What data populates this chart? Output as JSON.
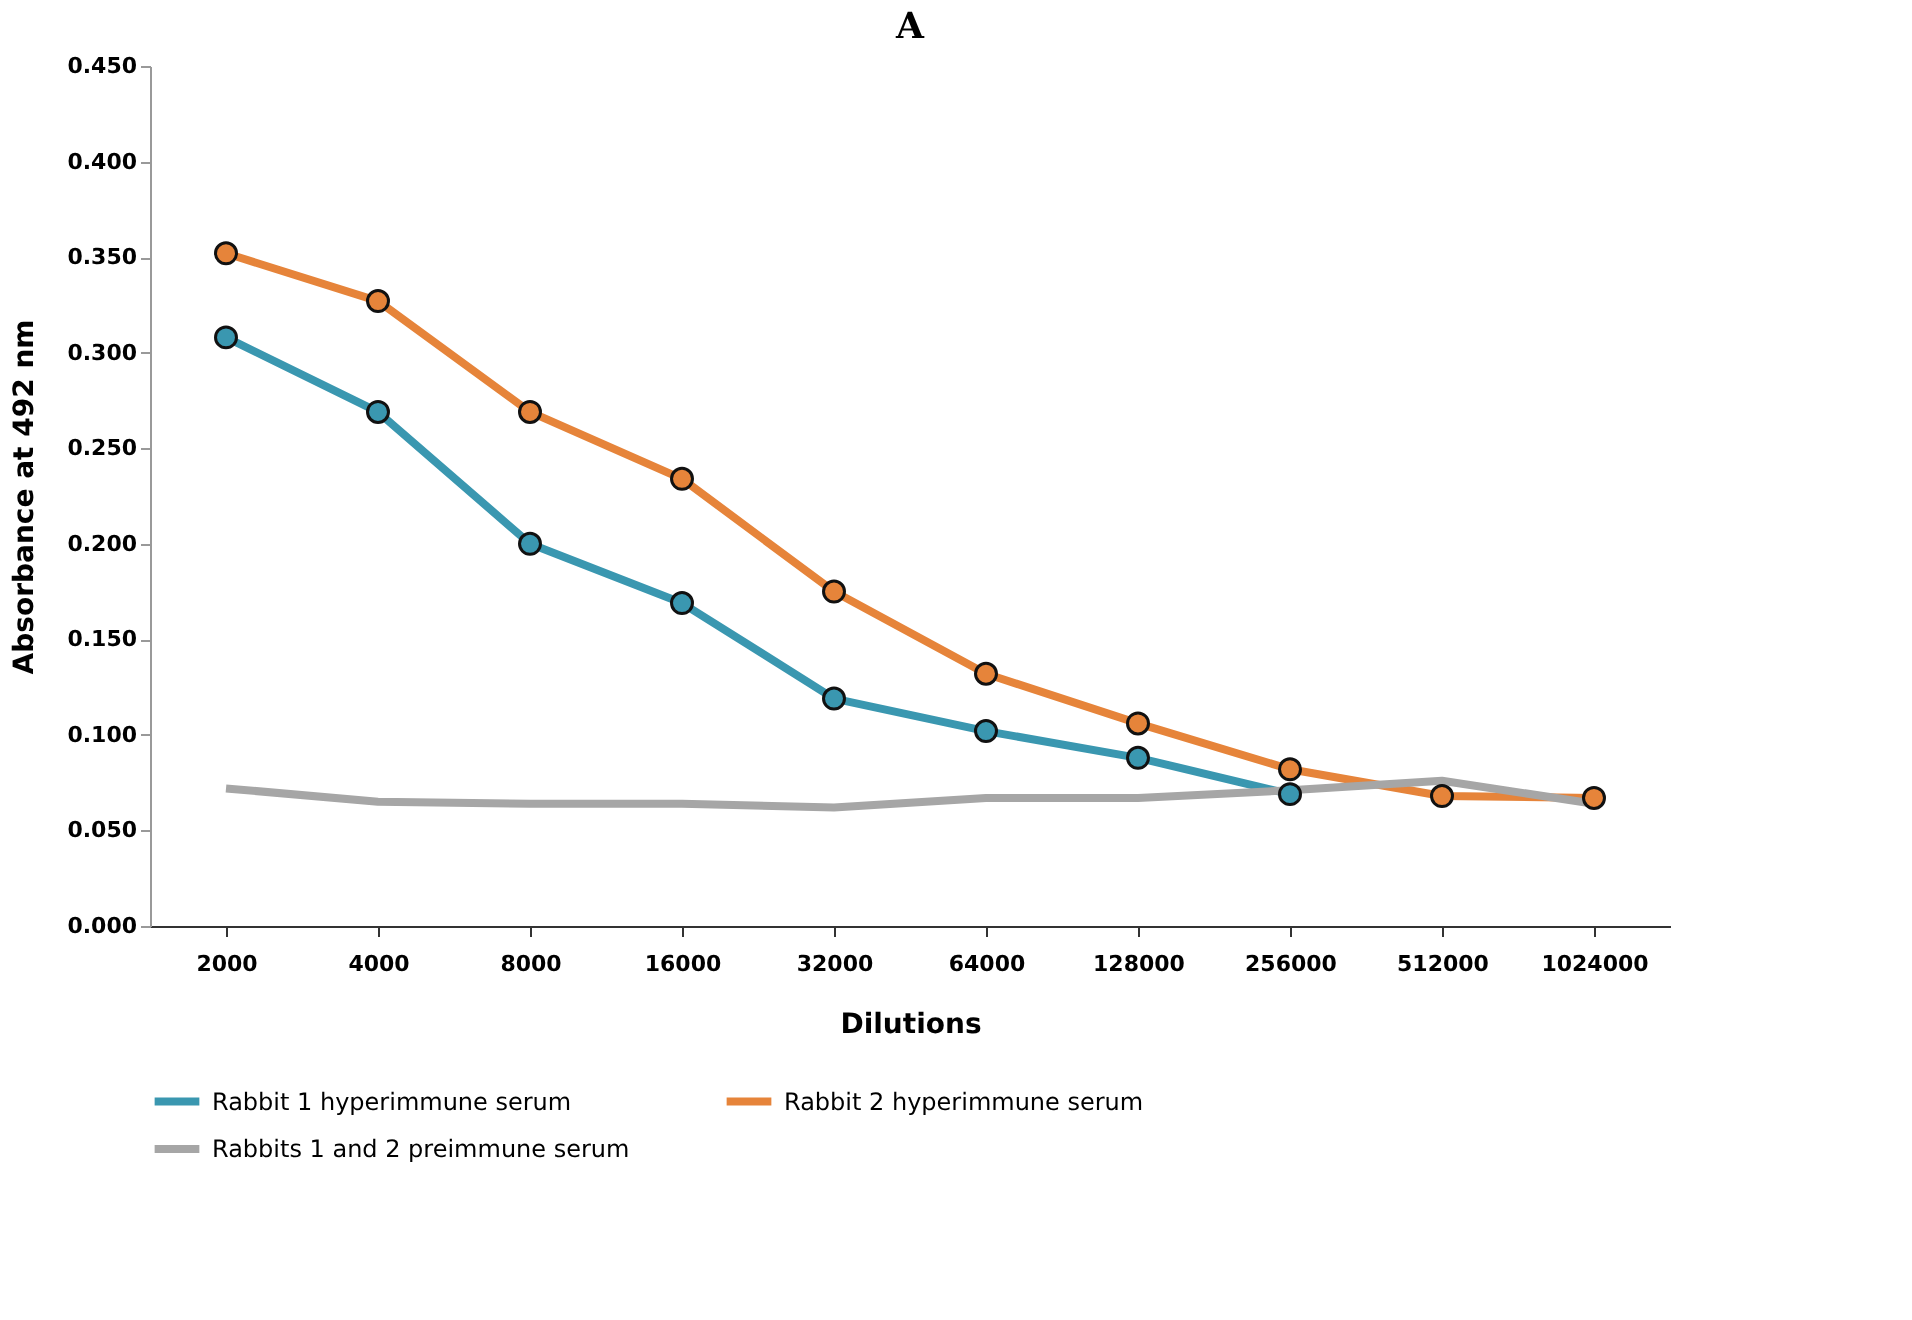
{
  "chart_data": {
    "type": "line",
    "title": "A",
    "xlabel": "Dilutions",
    "ylabel": "Absorbance at 492 nm",
    "categories": [
      "2000",
      "4000",
      "8000",
      "16000",
      "32000",
      "64000",
      "128000",
      "256000",
      "512000",
      "1024000"
    ],
    "series": [
      {
        "name": "Rabbit 1 hyperimmune serum",
        "color": "#3a97b0",
        "marker": "circle",
        "values": [
          0.308,
          0.269,
          0.2,
          0.169,
          0.119,
          0.102,
          0.088,
          0.069,
          null,
          null
        ]
      },
      {
        "name": "Rabbit 2 hyperimmune serum",
        "color": "#e6843a",
        "marker": "circle",
        "values": [
          0.352,
          0.327,
          0.269,
          0.234,
          0.175,
          0.132,
          0.106,
          0.082,
          0.068,
          0.067
        ]
      },
      {
        "name": "Rabbits 1 and 2 preimmune serum",
        "color": "#a6a6a6",
        "marker": "none",
        "values": [
          0.072,
          0.065,
          0.064,
          0.064,
          0.062,
          0.067,
          0.067,
          0.071,
          0.076,
          0.064
        ]
      }
    ],
    "ylim": [
      0,
      0.45
    ],
    "yticks": [
      {
        "value": 0,
        "label": "0.000"
      },
      {
        "value": 0.05,
        "label": "0.050"
      },
      {
        "value": 0.1,
        "label": "0.100"
      },
      {
        "value": 0.15,
        "label": "0.150"
      },
      {
        "value": 0.2,
        "label": "0.200"
      },
      {
        "value": 0.25,
        "label": "0.250"
      },
      {
        "value": 0.3,
        "label": "0.300"
      },
      {
        "value": 0.35,
        "label": "0.350"
      },
      {
        "value": 0.4,
        "label": "0.400"
      },
      {
        "value": 0.45,
        "label": "0.450"
      }
    ],
    "grid": false,
    "legend": "bottom",
    "line_style": "solid"
  }
}
